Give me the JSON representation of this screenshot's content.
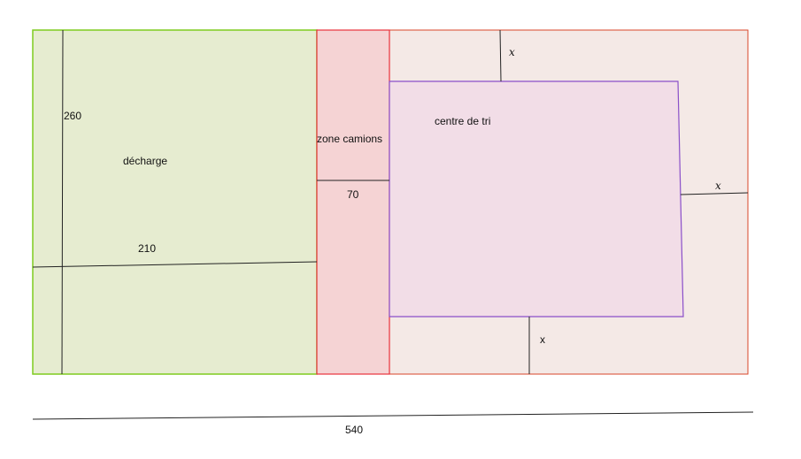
{
  "regions": {
    "decharge": {
      "label": "décharge",
      "fill": "#e6ecd0",
      "stroke": "#7fcc1f"
    },
    "zone_camions": {
      "label": "zone camions",
      "fill": "#f5d3d4",
      "stroke": "#e8323c"
    },
    "outer": {
      "fill": "#f4e9e6",
      "stroke": "#d9462a"
    },
    "centre_tri": {
      "label": "centre de tri",
      "fill": "#f2dde7",
      "stroke": "#8a4fc9"
    }
  },
  "dimensions": {
    "height_decharge": "260",
    "width_decharge": "210",
    "zone_camions_width": "70",
    "total_width": "540",
    "gap_top": "x",
    "gap_right": "x",
    "gap_bottom": "x"
  }
}
